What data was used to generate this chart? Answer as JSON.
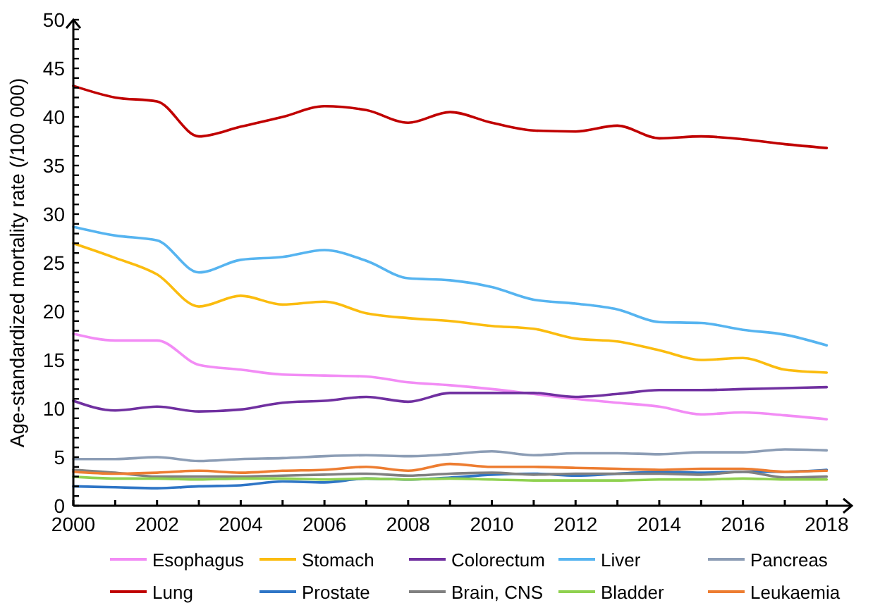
{
  "chart_data": {
    "type": "line",
    "ylabel": "Age-standardized mortality rate (/100 000)",
    "x": [
      2000,
      2001,
      2002,
      2003,
      2004,
      2005,
      2006,
      2007,
      2008,
      2009,
      2010,
      2011,
      2012,
      2013,
      2014,
      2015,
      2016,
      2017,
      2018
    ],
    "xlim": [
      2000,
      2018.6
    ],
    "xticks": [
      2000,
      {
        "value": 2001,
        "label": null
      },
      2002,
      {
        "value": 2003,
        "label": null
      },
      2004,
      {
        "value": 2005,
        "label": null
      },
      2006,
      {
        "value": 2007,
        "label": null
      },
      2008,
      {
        "value": 2009,
        "label": null
      },
      2010,
      {
        "value": 2011,
        "label": null
      },
      2012,
      {
        "value": 2013,
        "label": null
      },
      2014,
      {
        "value": 2015,
        "label": null
      },
      2016,
      {
        "value": 2017,
        "label": null
      },
      2018
    ],
    "ylim": [
      0,
      50
    ],
    "yticks": [
      0,
      {
        "value": 1,
        "label": null
      },
      {
        "value": 2,
        "label": null
      },
      {
        "value": 3,
        "label": null
      },
      {
        "value": 4,
        "label": null
      },
      5,
      {
        "value": 6,
        "label": null
      },
      {
        "value": 7,
        "label": null
      },
      {
        "value": 8,
        "label": null
      },
      {
        "value": 9,
        "label": null
      },
      10,
      {
        "value": 11,
        "label": null
      },
      {
        "value": 12,
        "label": null
      },
      {
        "value": 13,
        "label": null
      },
      {
        "value": 14,
        "label": null
      },
      15,
      {
        "value": 16,
        "label": null
      },
      {
        "value": 17,
        "label": null
      },
      {
        "value": 18,
        "label": null
      },
      {
        "value": 19,
        "label": null
      },
      20,
      {
        "value": 21,
        "label": null
      },
      {
        "value": 22,
        "label": null
      },
      {
        "value": 23,
        "label": null
      },
      {
        "value": 24,
        "label": null
      },
      25,
      {
        "value": 26,
        "label": null
      },
      {
        "value": 27,
        "label": null
      },
      {
        "value": 28,
        "label": null
      },
      {
        "value": 29,
        "label": null
      },
      30,
      {
        "value": 31,
        "label": null
      },
      {
        "value": 32,
        "label": null
      },
      {
        "value": 33,
        "label": null
      },
      {
        "value": 34,
        "label": null
      },
      35,
      {
        "value": 36,
        "label": null
      },
      {
        "value": 37,
        "label": null
      },
      {
        "value": 38,
        "label": null
      },
      {
        "value": 39,
        "label": null
      },
      40,
      {
        "value": 41,
        "label": null
      },
      {
        "value": 42,
        "label": null
      },
      {
        "value": 43,
        "label": null
      },
      {
        "value": 44,
        "label": null
      },
      45,
      {
        "value": 46,
        "label": null
      },
      {
        "value": 47,
        "label": null
      },
      {
        "value": 48,
        "label": null
      },
      {
        "value": 49,
        "label": null
      },
      50
    ],
    "grid": false,
    "legend": "bottom",
    "marker": "none",
    "line_style": "solid",
    "series": [
      {
        "name": "Esophagus",
        "color": "#f28cf5",
        "values": [
          17.7,
          17.0,
          17.0,
          14.5,
          14.0,
          13.5,
          13.4,
          13.3,
          12.7,
          12.4,
          12.0,
          11.5,
          11.0,
          10.6,
          10.2,
          9.4,
          9.6,
          9.3,
          8.9
        ]
      },
      {
        "name": "Stomach",
        "color": "#fbbc0f",
        "values": [
          27.0,
          25.5,
          23.8,
          20.5,
          21.6,
          20.7,
          21.0,
          19.8,
          19.3,
          19.0,
          18.5,
          18.2,
          17.2,
          16.9,
          16.0,
          15.0,
          15.2,
          14.0,
          13.7
        ]
      },
      {
        "name": "Colorectum",
        "color": "#7030a0",
        "values": [
          10.8,
          9.8,
          10.2,
          9.7,
          9.9,
          10.6,
          10.8,
          11.2,
          10.7,
          11.6,
          11.6,
          11.6,
          11.2,
          11.5,
          11.9,
          11.9,
          12.0,
          12.1,
          12.2
        ]
      },
      {
        "name": "Liver",
        "color": "#56b4f0",
        "values": [
          28.7,
          27.8,
          27.3,
          24.0,
          25.3,
          25.6,
          26.3,
          25.2,
          23.4,
          23.2,
          22.5,
          21.2,
          20.8,
          20.2,
          18.9,
          18.8,
          18.1,
          17.6,
          16.5
        ]
      },
      {
        "name": "Pancreas",
        "color": "#8c9db5",
        "values": [
          4.8,
          4.8,
          5.0,
          4.6,
          4.8,
          4.9,
          5.1,
          5.2,
          5.1,
          5.3,
          5.6,
          5.2,
          5.4,
          5.4,
          5.3,
          5.5,
          5.5,
          5.8,
          5.7
        ]
      },
      {
        "name": "Lung",
        "color": "#c00000",
        "values": [
          43.2,
          42.0,
          41.6,
          38.0,
          39.0,
          40.0,
          41.1,
          40.7,
          39.4,
          40.5,
          39.4,
          38.6,
          38.5,
          39.1,
          37.8,
          38.0,
          37.7,
          37.2,
          36.8
        ]
      },
      {
        "name": "Prostate",
        "color": "#2e75c6",
        "values": [
          2.0,
          1.9,
          1.8,
          2.0,
          2.1,
          2.5,
          2.4,
          2.8,
          2.7,
          2.9,
          3.2,
          3.3,
          3.1,
          3.3,
          3.5,
          3.4,
          3.5,
          3.5,
          3.7
        ]
      },
      {
        "name": "Brain, CNS",
        "color": "#808080",
        "values": [
          3.7,
          3.4,
          3.0,
          3.0,
          3.0,
          3.1,
          3.2,
          3.3,
          3.1,
          3.3,
          3.4,
          3.2,
          3.3,
          3.3,
          3.3,
          3.2,
          3.5,
          2.9,
          3.0
        ]
      },
      {
        "name": "Bladder",
        "color": "#8fd14f",
        "values": [
          3.0,
          2.8,
          2.8,
          2.7,
          2.8,
          2.8,
          2.7,
          2.8,
          2.7,
          2.8,
          2.7,
          2.6,
          2.6,
          2.6,
          2.7,
          2.7,
          2.8,
          2.7,
          2.7
        ]
      },
      {
        "name": "Leukaemia",
        "color": "#ed7d31",
        "values": [
          3.5,
          3.3,
          3.4,
          3.6,
          3.4,
          3.6,
          3.7,
          4.0,
          3.6,
          4.3,
          4.0,
          4.0,
          3.9,
          3.8,
          3.7,
          3.8,
          3.8,
          3.5,
          3.6
        ]
      }
    ]
  }
}
